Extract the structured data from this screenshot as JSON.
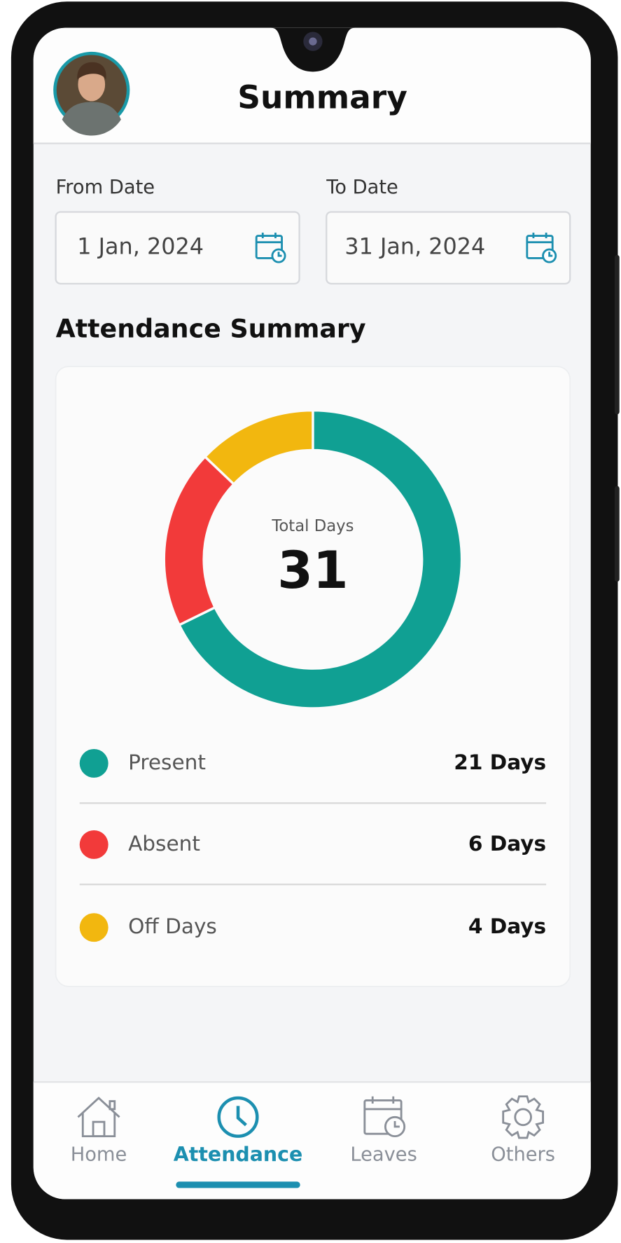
{
  "header": {
    "title": "Summary"
  },
  "from_date": {
    "label": "From Date",
    "value": "1 Jan, 2024"
  },
  "to_date": {
    "label": "To Date",
    "value": "31 Jan, 2024"
  },
  "section_title": "Attendance Summary",
  "chart_data": {
    "type": "donut",
    "center_label": "Total Days",
    "center_value": 31,
    "categories": [
      "Present",
      "Absent",
      "Off Days"
    ],
    "values": [
      21,
      6,
      4
    ],
    "value_labels": [
      "21 Days",
      "6 Days",
      "4 Days"
    ],
    "colors": [
      "#10a093",
      "#f23a3a",
      "#f2b70f"
    ]
  },
  "nav": {
    "items": [
      {
        "label": "Home",
        "active": false
      },
      {
        "label": "Attendance",
        "active": true
      },
      {
        "label": "Leaves",
        "active": false
      },
      {
        "label": "Others",
        "active": false
      }
    ]
  }
}
